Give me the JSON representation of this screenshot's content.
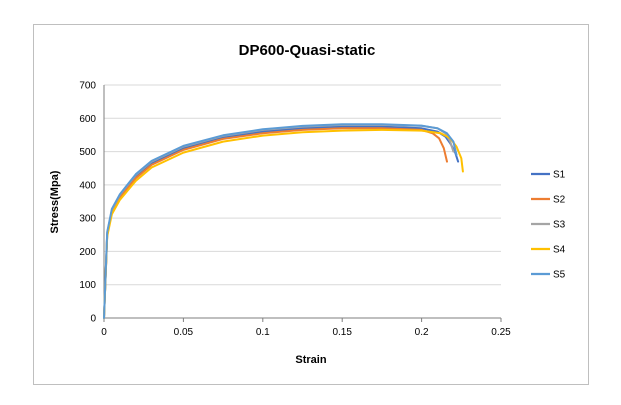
{
  "chart_data": {
    "type": "line",
    "title": "DP600-Quasi-static",
    "xlabel": "Strain",
    "ylabel": "Stress(Mpa)",
    "xlim": [
      0,
      0.25
    ],
    "ylim": [
      0,
      700
    ],
    "x_ticks": [
      "0",
      "0.05",
      "0.1",
      "0.15",
      "0.2",
      "0.25"
    ],
    "y_ticks": [
      "0",
      "100",
      "200",
      "300",
      "400",
      "500",
      "600",
      "700"
    ],
    "grid": "horizontal",
    "legend_position": "right",
    "series": [
      {
        "name": "S1",
        "color": "#4472C4",
        "x": [
          0,
          0.002,
          0.005,
          0.01,
          0.02,
          0.03,
          0.05,
          0.075,
          0.1,
          0.125,
          0.15,
          0.175,
          0.2,
          0.21,
          0.215,
          0.218,
          0.221,
          0.223
        ],
        "y": [
          0,
          250,
          320,
          365,
          425,
          465,
          510,
          542,
          560,
          570,
          575,
          575,
          570,
          560,
          545,
          525,
          500,
          470
        ]
      },
      {
        "name": "S2",
        "color": "#ED7D31",
        "x": [
          0,
          0.002,
          0.005,
          0.01,
          0.02,
          0.03,
          0.05,
          0.075,
          0.1,
          0.125,
          0.15,
          0.175,
          0.2,
          0.207,
          0.211,
          0.214,
          0.216
        ],
        "y": [
          0,
          250,
          318,
          362,
          420,
          460,
          505,
          538,
          555,
          565,
          570,
          570,
          565,
          555,
          540,
          510,
          470
        ]
      },
      {
        "name": "S3",
        "color": "#A5A5A5",
        "x": [
          0,
          0.002,
          0.005,
          0.01,
          0.02,
          0.03,
          0.05,
          0.075,
          0.1,
          0.125,
          0.15,
          0.175,
          0.2,
          0.21,
          0.215,
          0.218,
          0.22
        ],
        "y": [
          0,
          255,
          325,
          370,
          430,
          470,
          515,
          547,
          565,
          575,
          580,
          580,
          577,
          570,
          555,
          530,
          500
        ]
      },
      {
        "name": "S4",
        "color": "#FFC000",
        "x": [
          0,
          0.002,
          0.005,
          0.01,
          0.02,
          0.03,
          0.05,
          0.075,
          0.1,
          0.125,
          0.15,
          0.175,
          0.2,
          0.212,
          0.218,
          0.222,
          0.225,
          0.226
        ],
        "y": [
          0,
          245,
          312,
          355,
          412,
          452,
          497,
          530,
          548,
          558,
          563,
          565,
          563,
          555,
          540,
          515,
          480,
          440
        ]
      },
      {
        "name": "S5",
        "color": "#5B9BD5",
        "x": [
          0,
          0.002,
          0.005,
          0.01,
          0.02,
          0.03,
          0.05,
          0.075,
          0.1,
          0.125,
          0.15,
          0.175,
          0.2,
          0.21,
          0.216,
          0.22,
          0.222
        ],
        "y": [
          0,
          258,
          328,
          372,
          432,
          472,
          517,
          549,
          567,
          577,
          582,
          582,
          578,
          570,
          555,
          530,
          490
        ]
      }
    ]
  }
}
